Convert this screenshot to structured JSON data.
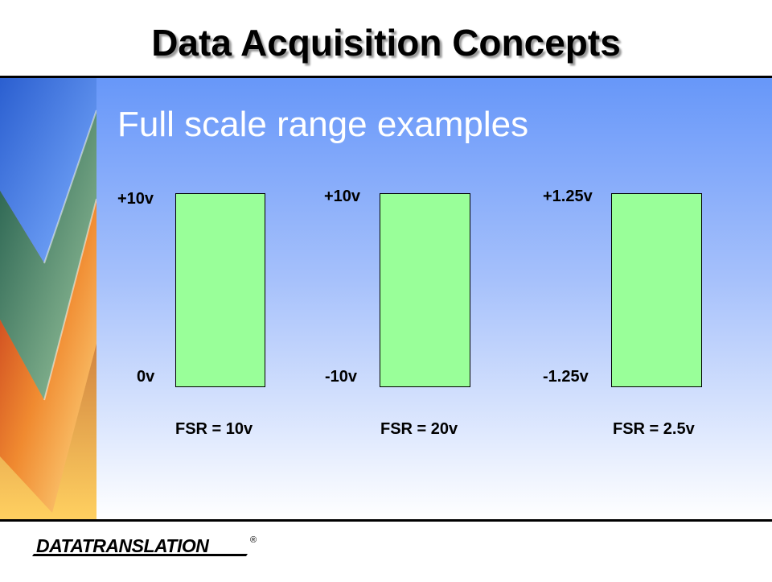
{
  "header": {
    "title": "Data Acquisition Concepts"
  },
  "slide": {
    "subtitle": "Full scale range examples",
    "examples": [
      {
        "top": "+10v",
        "bottom": "0v",
        "fsr": "FSR = 10v"
      },
      {
        "top": "+10v",
        "bottom": "-10v",
        "fsr": "FSR = 20v"
      },
      {
        "top": "+1.25v",
        "bottom": "-1.25v",
        "fsr": "FSR = 2.5v"
      }
    ]
  },
  "footer": {
    "logo": "DATATRANSLATION",
    "mark": "®"
  }
}
